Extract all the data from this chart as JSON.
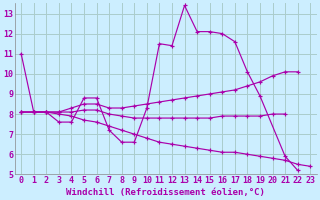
{
  "background_color": "#cceeff",
  "grid_color": "#aacccc",
  "line_color": "#aa00aa",
  "xlim": [
    -0.5,
    23.5
  ],
  "ylim": [
    5,
    13.5
  ],
  "yticks": [
    5,
    6,
    7,
    8,
    9,
    10,
    11,
    12,
    13
  ],
  "xticks": [
    0,
    1,
    2,
    3,
    4,
    5,
    6,
    7,
    8,
    9,
    10,
    11,
    12,
    13,
    14,
    15,
    16,
    17,
    18,
    19,
    20,
    21,
    22,
    23
  ],
  "xlabel": "Windchill (Refroidissement éolien,°C)",
  "xlabel_fontsize": 6.5,
  "tick_fontsize": 6.0,
  "figsize": [
    3.2,
    2.0
  ],
  "dpi": 100,
  "series": [
    {
      "x": [
        0,
        1,
        2,
        3,
        4,
        5,
        6,
        7,
        8,
        9,
        10,
        11,
        12,
        13,
        14,
        15,
        16,
        17,
        18,
        19,
        21,
        22
      ],
      "y": [
        11.0,
        8.1,
        8.1,
        7.6,
        7.6,
        8.8,
        8.8,
        7.2,
        6.6,
        6.6,
        8.3,
        11.5,
        11.4,
        13.4,
        12.1,
        12.1,
        12.0,
        11.6,
        10.1,
        8.9,
        5.9,
        5.2
      ]
    },
    {
      "x": [
        0,
        1,
        2,
        3,
        4,
        5,
        6,
        7,
        8,
        9,
        10,
        11,
        12,
        13,
        14,
        15,
        16,
        17,
        18,
        19,
        20,
        21,
        22
      ],
      "y": [
        8.1,
        8.1,
        8.1,
        8.1,
        8.3,
        8.5,
        8.5,
        8.3,
        8.3,
        8.4,
        8.5,
        8.6,
        8.7,
        8.8,
        8.9,
        9.0,
        9.1,
        9.2,
        9.4,
        9.6,
        9.9,
        10.1,
        10.1
      ]
    },
    {
      "x": [
        0,
        1,
        2,
        3,
        4,
        5,
        6,
        7,
        8,
        9,
        10,
        11,
        12,
        13,
        14,
        15,
        16,
        17,
        18,
        19,
        20,
        21
      ],
      "y": [
        8.1,
        8.1,
        8.1,
        8.1,
        8.1,
        8.2,
        8.2,
        8.0,
        7.9,
        7.8,
        7.8,
        7.8,
        7.8,
        7.8,
        7.8,
        7.8,
        7.9,
        7.9,
        7.9,
        7.9,
        8.0,
        8.0
      ]
    },
    {
      "x": [
        0,
        1,
        2,
        3,
        4,
        5,
        6,
        7,
        8,
        9,
        10,
        11,
        12,
        13,
        14,
        15,
        16,
        17,
        18,
        19,
        20,
        21,
        22,
        23
      ],
      "y": [
        8.1,
        8.1,
        8.1,
        8.0,
        7.9,
        7.7,
        7.6,
        7.4,
        7.2,
        7.0,
        6.8,
        6.6,
        6.5,
        6.4,
        6.3,
        6.2,
        6.1,
        6.1,
        6.0,
        5.9,
        5.8,
        5.7,
        5.5,
        5.4
      ]
    }
  ]
}
